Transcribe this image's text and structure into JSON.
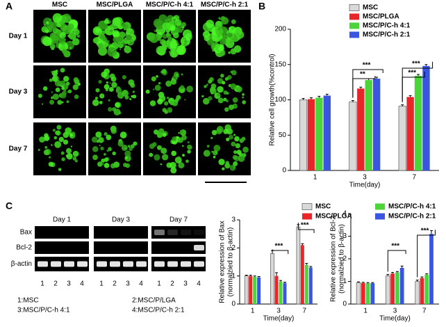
{
  "panel_a": {
    "label": "A",
    "columns": [
      "MSC",
      "MSC/PLGA",
      "MSC/P/C-h 4:1",
      "MSC/P/C-h 2:1"
    ],
    "rows": [
      "Day 1",
      "Day 3",
      "Day 7"
    ]
  },
  "panel_b": {
    "label": "B"
  },
  "panel_c": {
    "label": "C",
    "gel_days": [
      "Day 1",
      "Day 3",
      "Day 7"
    ],
    "gel_rows": [
      "Bax",
      "Bcl-2",
      "β-actin"
    ],
    "lanes": [
      "1",
      "2",
      "3",
      "4"
    ],
    "key": [
      "1:MSC",
      "2:MSC/P/LGA",
      "3:MSC/P/C-h 4:1",
      "4:MSC/P/C-h 2:1"
    ]
  },
  "chart_data": [
    {
      "type": "bar",
      "ylabel": "Relative cell growth(%control)",
      "xlabel": "Time(day)",
      "categories": [
        "1",
        "3",
        "7"
      ],
      "ylim": [
        0,
        200
      ],
      "yticks": [
        0,
        50,
        100,
        150,
        200
      ],
      "series": [
        {
          "name": "MSC",
          "color": "#d9d9d9",
          "values": [
            100,
            97,
            91
          ],
          "errors": [
            2,
            2,
            2
          ]
        },
        {
          "name": "MSC/PLGA",
          "color": "#e8262a",
          "values": [
            101,
            116,
            104
          ],
          "errors": [
            2,
            2,
            2
          ]
        },
        {
          "name": "MSC/P/C-h 4:1",
          "color": "#4cd43a",
          "values": [
            103,
            128,
            134
          ],
          "errors": [
            2,
            2,
            2
          ]
        },
        {
          "name": "MSC/P/C-h 2:1",
          "color": "#3a56e0",
          "values": [
            106,
            130,
            148
          ],
          "errors": [
            2,
            2,
            2
          ]
        }
      ],
      "annotations": [
        "***",
        "**",
        "***",
        "***"
      ]
    },
    {
      "type": "bar",
      "ylabel": "Relative expression of Bax",
      "ylabel_sub": "(normalzied to β-actin)",
      "xlabel": "Time(day)",
      "categories": [
        "1",
        "3",
        "7"
      ],
      "ylim": [
        0,
        3
      ],
      "yticks": [
        0,
        1,
        2,
        3
      ],
      "series": [
        {
          "name": "MSC",
          "color": "#d9d9d9",
          "values": [
            1.0,
            1.8,
            2.75
          ],
          "errors": [
            0.03,
            0.1,
            0.08
          ]
        },
        {
          "name": "MSC/PLGA",
          "color": "#e8262a",
          "values": [
            1.0,
            1.0,
            2.1
          ],
          "errors": [
            0.03,
            0.12,
            0.05
          ]
        },
        {
          "name": "MSC/P/C-h 4:1",
          "color": "#4cd43a",
          "values": [
            0.97,
            0.8,
            1.4
          ],
          "errors": [
            0.03,
            0.04,
            0.05
          ]
        },
        {
          "name": "MSC/P/C-h 2:1",
          "color": "#3a56e0",
          "values": [
            0.95,
            0.75,
            1.3
          ],
          "errors": [
            0.03,
            0.03,
            0.04
          ]
        }
      ],
      "annotations": [
        "***",
        "***"
      ]
    },
    {
      "type": "bar",
      "ylabel": "Relative expression of Bcl-2",
      "ylabel_sub": "(normalzied to β-actin)",
      "xlabel": "Time(day)",
      "categories": [
        "1",
        "3",
        "7"
      ],
      "ylim": [
        0,
        4
      ],
      "yticks": [
        0,
        1,
        2,
        3,
        4
      ],
      "series": [
        {
          "color": "#d9d9d9",
          "values": [
            0.95,
            1.25,
            1.0
          ],
          "errors": [
            0.03,
            0.06,
            0.06
          ]
        },
        {
          "color": "#e8262a",
          "values": [
            0.93,
            1.35,
            1.15
          ],
          "errors": [
            0.03,
            0.05,
            0.05
          ]
        },
        {
          "color": "#4cd43a",
          "values": [
            0.92,
            1.4,
            1.3
          ],
          "errors": [
            0.03,
            0.04,
            0.04
          ]
        },
        {
          "color": "#3a56e0",
          "values": [
            0.92,
            1.6,
            3.1
          ],
          "errors": [
            0.03,
            0.08,
            0.15
          ]
        }
      ],
      "annotations": [
        "***",
        "***"
      ]
    }
  ]
}
